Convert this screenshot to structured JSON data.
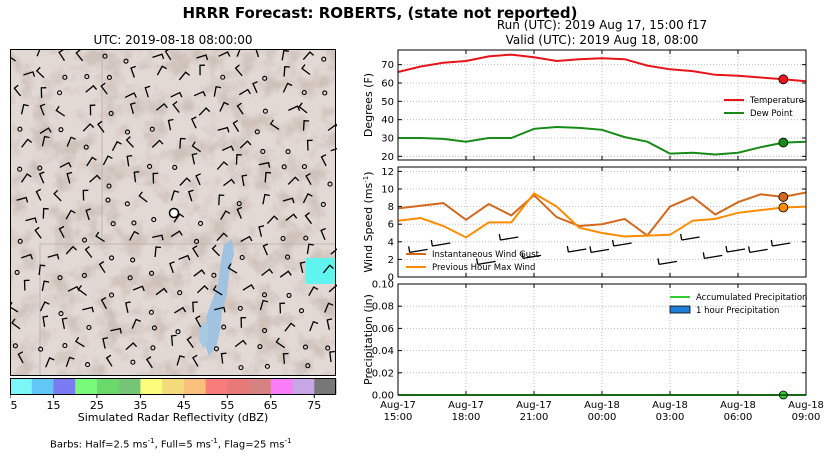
{
  "suptitle": "HRRR Forecast: ROBERTS, (state not reported)",
  "map": {
    "title": "UTC: 2019-08-18 08:00:00",
    "colorbar_label": "Simulated Radar Reflectivity (dBZ)",
    "colorbar_ticks": [
      "5",
      "15",
      "25",
      "35",
      "45",
      "55",
      "65",
      "75"
    ],
    "colorbar_colors": [
      "#7cf7f7",
      "#62c7f7",
      "#7a7af2",
      "#7afa7a",
      "#6bd86b",
      "#76c476",
      "#fcfc7c",
      "#f3db7c",
      "#fbbf7c",
      "#f97c7c",
      "#e77979",
      "#d78282",
      "#f97cf9",
      "#c7a6e6",
      "#777777"
    ],
    "barbs_note_prefix": "Barbs: Half=2.5 ms",
    "barbs_note_mid1": ", Full=5 ms",
    "barbs_note_mid2": ", Flag=25 ms",
    "exp": "-1"
  },
  "run": {
    "line1": "Run (UTC): 2019 Aug 17, 15:00 f17",
    "line2": "Valid (UTC): 2019 Aug 18, 08:00"
  },
  "chart_data": [
    {
      "type": "line",
      "ylabel": "Degrees (F)",
      "ylim": [
        18,
        78
      ],
      "yticks": [
        "20",
        "30",
        "40",
        "50",
        "60",
        "70"
      ],
      "x_hours": [
        0,
        1,
        2,
        3,
        4,
        5,
        6,
        7,
        8,
        9,
        10,
        11,
        12,
        13,
        14,
        15,
        16,
        17,
        18
      ],
      "series": [
        {
          "name": "Temperature",
          "color": "#e8141a",
          "values": [
            66,
            69,
            71,
            72,
            74.5,
            75.5,
            74,
            72,
            73,
            73.5,
            73,
            69.5,
            67.5,
            66.5,
            64.5,
            64,
            63,
            62,
            61
          ]
        },
        {
          "name": "Dew Point",
          "color": "#188a18",
          "values": [
            30,
            30,
            29.5,
            28,
            30,
            30,
            35,
            36,
            35.5,
            34.5,
            30.5,
            28,
            21.5,
            22,
            21,
            22,
            25,
            27.5,
            28
          ]
        }
      ],
      "legend": "right"
    },
    {
      "type": "line",
      "ylabel": "Wind Speed (ms",
      "ylabel_exp": "-1",
      "ylim": [
        0,
        12.5
      ],
      "yticks": [
        "0",
        "2",
        "4",
        "6",
        "8",
        "10",
        "12"
      ],
      "x_hours": [
        0,
        1,
        2,
        3,
        4,
        5,
        6,
        7,
        8,
        9,
        10,
        11,
        12,
        13,
        14,
        15,
        16,
        17,
        18
      ],
      "series": [
        {
          "name": "Instantaneous Wind Gust",
          "color": "#d2691e",
          "values": [
            7.8,
            8.1,
            8.4,
            6.5,
            8.3,
            7.0,
            9.3,
            6.8,
            5.8,
            6.0,
            6.6,
            4.7,
            8.0,
            9.1,
            7.1,
            8.5,
            9.4,
            9.1,
            9.6
          ]
        },
        {
          "name": "Previous Hour Max Wind",
          "color": "#ff8c00",
          "values": [
            6.4,
            6.7,
            5.8,
            4.5,
            6.2,
            6.2,
            9.5,
            8.0,
            5.6,
            5.0,
            4.6,
            4.7,
            4.8,
            6.4,
            6.6,
            7.3,
            7.6,
            7.9,
            8.0
          ]
        }
      ],
      "legend": "bottom-left"
    },
    {
      "type": "bar",
      "ylabel": "Precipitation (in)",
      "ylim": [
        0,
        0.1
      ],
      "yticks": [
        "0.00",
        "0.02",
        "0.04",
        "0.06",
        "0.08",
        "0.10"
      ],
      "xticks": [
        [
          "Aug-17",
          "15:00"
        ],
        [
          "Aug-17",
          "18:00"
        ],
        [
          "Aug-17",
          "21:00"
        ],
        [
          "Aug-18",
          "00:00"
        ],
        [
          "Aug-18",
          "03:00"
        ],
        [
          "Aug-18",
          "06:00"
        ],
        [
          "Aug-18",
          "09:00"
        ]
      ],
      "series": [
        {
          "name": "Accumulated Precipitation",
          "color": "#32cd32",
          "values": [
            0,
            0,
            0,
            0,
            0,
            0,
            0,
            0,
            0,
            0,
            0,
            0,
            0,
            0,
            0,
            0,
            0,
            0,
            0
          ]
        },
        {
          "name": "1 hour Precipitation",
          "color": "#1f7fd8",
          "values": [
            0,
            0,
            0,
            0,
            0,
            0,
            0,
            0,
            0,
            0,
            0,
            0,
            0,
            0,
            0,
            0,
            0,
            0,
            0
          ]
        }
      ],
      "legend": "top-right"
    }
  ]
}
